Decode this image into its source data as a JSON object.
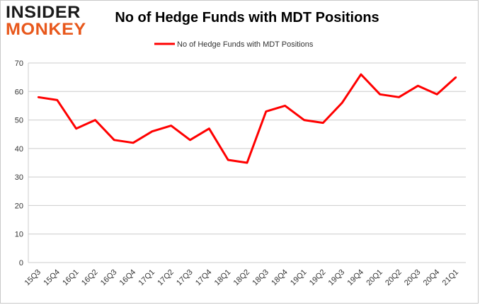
{
  "logo": {
    "line1": "INSIDER",
    "line2": "MONKEY"
  },
  "chart_data": {
    "type": "line",
    "title": "No of Hedge Funds with MDT Positions",
    "xlabel": "",
    "ylabel": "",
    "categories": [
      "15Q3",
      "15Q4",
      "16Q1",
      "16Q2",
      "16Q3",
      "16Q4",
      "17Q1",
      "17Q2",
      "17Q3",
      "17Q4",
      "18Q1",
      "18Q2",
      "18Q3",
      "18Q4",
      "19Q1",
      "19Q2",
      "19Q3",
      "19Q4",
      "20Q1",
      "20Q2",
      "20Q3",
      "20Q4",
      "21Q1"
    ],
    "series": [
      {
        "name": "No of Hedge Funds with MDT Positions",
        "values": [
          58,
          57,
          47,
          50,
          43,
          42,
          46,
          48,
          43,
          47,
          36,
          35,
          53,
          55,
          50,
          49,
          56,
          66,
          59,
          58,
          62,
          59,
          65
        ],
        "color": "#ff0000"
      }
    ],
    "ylim": [
      0,
      70
    ],
    "yticks": [
      0,
      10,
      20,
      30,
      40,
      50,
      60,
      70
    ],
    "grid": true,
    "legend_position": "top-center"
  }
}
